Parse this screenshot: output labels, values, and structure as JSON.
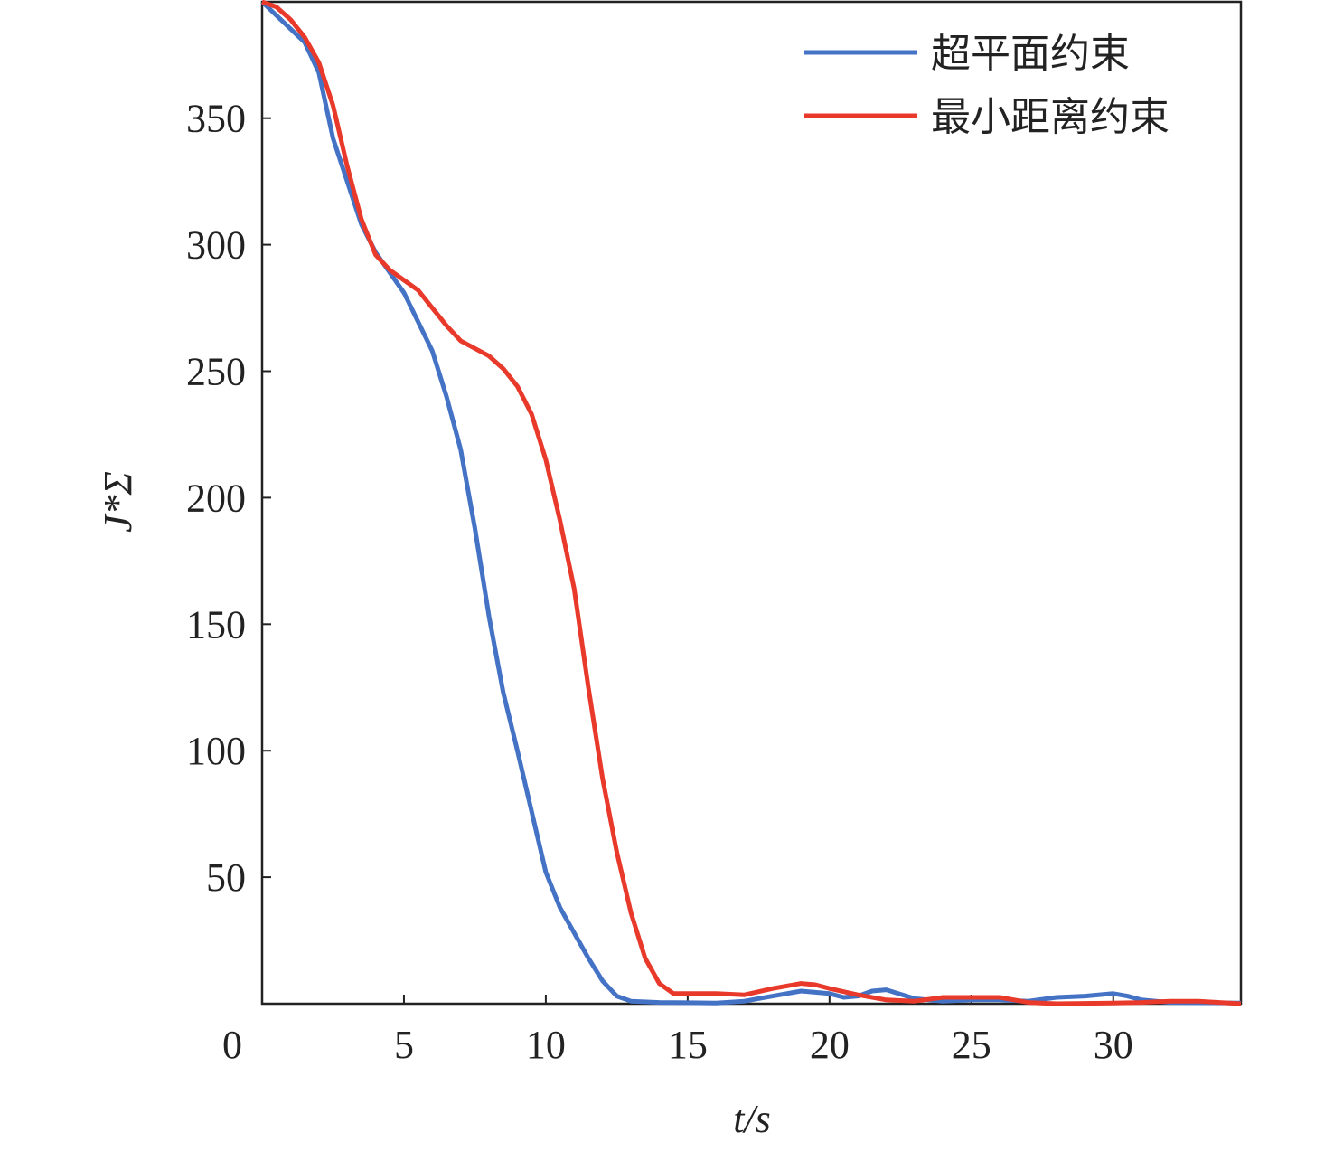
{
  "chart_data": {
    "type": "line",
    "x_label": "t/s",
    "y_label": "J*Σ",
    "xlim": [
      0,
      34.5
    ],
    "ylim": [
      0,
      396
    ],
    "xticks": [
      0,
      5,
      10,
      15,
      20,
      25,
      30
    ],
    "yticks": [
      50,
      100,
      150,
      200,
      250,
      300,
      350
    ],
    "legend": "upper right",
    "series": [
      {
        "name": "超平面约束",
        "color": "#4472c4",
        "x": [
          0,
          1.5,
          2,
          2.5,
          3,
          3.5,
          4,
          5,
          6,
          6.5,
          7,
          7.5,
          8,
          8.5,
          9,
          9.5,
          10,
          10.5,
          11,
          11.5,
          12,
          12.5,
          13,
          14,
          16,
          17,
          18,
          19,
          20,
          20.5,
          21,
          21.5,
          22,
          23,
          24,
          25,
          26,
          27,
          28,
          29,
          30,
          30.5,
          31,
          32,
          34.5
        ],
        "values": [
          396,
          380,
          368,
          342,
          325,
          308,
          297,
          281,
          258,
          240,
          219,
          188,
          153,
          123,
          100,
          76,
          52,
          38,
          28,
          18,
          9,
          3,
          1,
          0.5,
          0.3,
          1,
          3,
          5,
          4,
          2.5,
          3,
          5,
          5.5,
          2,
          1,
          1.5,
          1.5,
          1,
          2.5,
          3,
          4,
          3,
          1.5,
          0.5,
          0.3
        ]
      },
      {
        "name": "最小距离约束",
        "color": "#e8392b",
        "x": [
          0,
          0.5,
          1,
          1.5,
          2,
          2.5,
          3,
          3.5,
          4,
          4.5,
          5,
          5.5,
          6,
          6.5,
          7,
          7.5,
          8,
          8.5,
          9,
          9.5,
          10,
          10.5,
          11,
          11.5,
          12,
          12.5,
          13,
          13.5,
          14,
          14.5,
          15,
          16,
          17,
          18,
          19,
          19.5,
          20,
          21,
          22,
          23,
          24,
          25,
          26,
          27,
          28,
          30,
          31,
          32,
          33,
          34.5
        ],
        "values": [
          396,
          394,
          389,
          382,
          372,
          355,
          331,
          310,
          296,
          290,
          286,
          282,
          275,
          268,
          262,
          259,
          256,
          251,
          244,
          233,
          215,
          191,
          164,
          125,
          89,
          60,
          36,
          18,
          8,
          4,
          4,
          4,
          3.5,
          6,
          8,
          7.5,
          6,
          3.5,
          1.5,
          1,
          2.5,
          2.5,
          2.5,
          0.5,
          0,
          0.3,
          0.5,
          1,
          1,
          0
        ]
      }
    ]
  }
}
